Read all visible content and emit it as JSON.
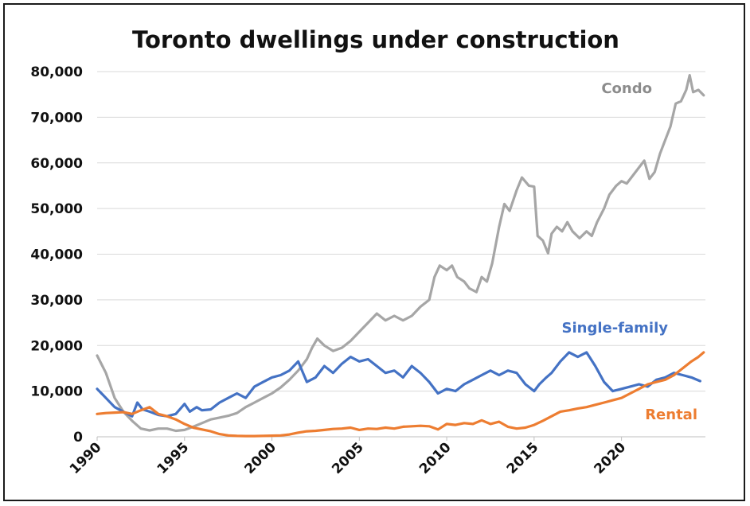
{
  "chart_data": {
    "type": "line",
    "title": "Toronto dwellings under construction",
    "xlim": [
      1990,
      2024.8
    ],
    "ylim": [
      0,
      80000
    ],
    "y_ticks": [
      0,
      10000,
      20000,
      30000,
      40000,
      50000,
      60000,
      70000,
      80000
    ],
    "y_tick_labels": [
      "0",
      "10,000",
      "20,000",
      "30,000",
      "40,000",
      "50,000",
      "60,000",
      "70,000",
      "80,000"
    ],
    "x_ticks": [
      1990,
      1995,
      2000,
      2005,
      2010,
      2015,
      2020
    ],
    "x_tick_labels": [
      "1990",
      "1995",
      "2000",
      "2005",
      "2010",
      "2015",
      "2020"
    ],
    "grid": true,
    "series": [
      {
        "name": "Condo",
        "color": "#a6a6a6",
        "points": [
          [
            1990,
            17800
          ],
          [
            1990.5,
            14000
          ],
          [
            1991,
            8500
          ],
          [
            1991.5,
            5500
          ],
          [
            1992,
            3500
          ],
          [
            1992.5,
            1800
          ],
          [
            1993,
            1400
          ],
          [
            1993.5,
            1800
          ],
          [
            1994,
            1800
          ],
          [
            1994.5,
            1300
          ],
          [
            1995,
            1500
          ],
          [
            1995.5,
            2200
          ],
          [
            1996,
            3000
          ],
          [
            1996.5,
            3800
          ],
          [
            1997,
            4200
          ],
          [
            1997.5,
            4600
          ],
          [
            1998,
            5200
          ],
          [
            1998.5,
            6500
          ],
          [
            1999,
            7500
          ],
          [
            1999.5,
            8500
          ],
          [
            2000,
            9500
          ],
          [
            2000.5,
            10800
          ],
          [
            2001,
            12500
          ],
          [
            2001.5,
            14500
          ],
          [
            2002,
            17000
          ],
          [
            2002.3,
            19500
          ],
          [
            2002.6,
            21500
          ],
          [
            2003,
            20000
          ],
          [
            2003.5,
            18800
          ],
          [
            2004,
            19500
          ],
          [
            2004.5,
            21000
          ],
          [
            2005,
            23000
          ],
          [
            2005.5,
            25000
          ],
          [
            2006,
            27000
          ],
          [
            2006.5,
            25500
          ],
          [
            2007,
            26500
          ],
          [
            2007.5,
            25500
          ],
          [
            2008,
            26500
          ],
          [
            2008.5,
            28500
          ],
          [
            2009,
            30000
          ],
          [
            2009.3,
            35000
          ],
          [
            2009.6,
            37500
          ],
          [
            2010,
            36500
          ],
          [
            2010.3,
            37500
          ],
          [
            2010.6,
            35000
          ],
          [
            2011,
            34000
          ],
          [
            2011.3,
            32500
          ],
          [
            2011.7,
            31700
          ],
          [
            2012,
            35000
          ],
          [
            2012.3,
            34000
          ],
          [
            2012.6,
            38000
          ],
          [
            2013,
            46000
          ],
          [
            2013.3,
            51000
          ],
          [
            2013.6,
            49500
          ],
          [
            2014,
            54000
          ],
          [
            2014.3,
            56800
          ],
          [
            2014.7,
            55000
          ],
          [
            2015,
            54800
          ],
          [
            2015.2,
            44000
          ],
          [
            2015.5,
            43000
          ],
          [
            2015.8,
            40200
          ],
          [
            2016,
            44500
          ],
          [
            2016.3,
            46000
          ],
          [
            2016.6,
            45000
          ],
          [
            2016.9,
            47000
          ],
          [
            2017.2,
            45000
          ],
          [
            2017.6,
            43500
          ],
          [
            2018,
            45000
          ],
          [
            2018.3,
            44000
          ],
          [
            2018.6,
            47000
          ],
          [
            2019,
            50000
          ],
          [
            2019.3,
            53000
          ],
          [
            2019.7,
            55000
          ],
          [
            2020,
            56000
          ],
          [
            2020.3,
            55500
          ],
          [
            2020.6,
            57000
          ],
          [
            2021,
            59000
          ],
          [
            2021.3,
            60500
          ],
          [
            2021.6,
            56500
          ],
          [
            2021.9,
            58000
          ],
          [
            2022.2,
            62000
          ],
          [
            2022.5,
            65000
          ],
          [
            2022.8,
            68000
          ],
          [
            2023.1,
            73000
          ],
          [
            2023.4,
            73500
          ],
          [
            2023.7,
            76000
          ],
          [
            2023.9,
            79200
          ],
          [
            2024.1,
            75500
          ],
          [
            2024.4,
            76000
          ],
          [
            2024.7,
            74800
          ]
        ]
      },
      {
        "name": "Single-family",
        "color": "#4472c4",
        "points": [
          [
            1990,
            10500
          ],
          [
            1990.5,
            8500
          ],
          [
            1991,
            6500
          ],
          [
            1991.5,
            5500
          ],
          [
            1992,
            4500
          ],
          [
            1992.3,
            7500
          ],
          [
            1992.6,
            6000
          ],
          [
            1993,
            5500
          ],
          [
            1993.5,
            4800
          ],
          [
            1994,
            4500
          ],
          [
            1994.5,
            5000
          ],
          [
            1995,
            7200
          ],
          [
            1995.3,
            5500
          ],
          [
            1995.7,
            6500
          ],
          [
            1996,
            5800
          ],
          [
            1996.5,
            6000
          ],
          [
            1997,
            7500
          ],
          [
            1997.5,
            8500
          ],
          [
            1998,
            9500
          ],
          [
            1998.5,
            8500
          ],
          [
            1999,
            11000
          ],
          [
            1999.5,
            12000
          ],
          [
            2000,
            13000
          ],
          [
            2000.5,
            13500
          ],
          [
            2001,
            14500
          ],
          [
            2001.5,
            16500
          ],
          [
            2002,
            12000
          ],
          [
            2002.5,
            13000
          ],
          [
            2003,
            15500
          ],
          [
            2003.5,
            14000
          ],
          [
            2004,
            16000
          ],
          [
            2004.5,
            17500
          ],
          [
            2005,
            16500
          ],
          [
            2005.5,
            17000
          ],
          [
            2006,
            15500
          ],
          [
            2006.5,
            14000
          ],
          [
            2007,
            14500
          ],
          [
            2007.5,
            13000
          ],
          [
            2008,
            15500
          ],
          [
            2008.5,
            14000
          ],
          [
            2009,
            12000
          ],
          [
            2009.5,
            9500
          ],
          [
            2010,
            10500
          ],
          [
            2010.5,
            10000
          ],
          [
            2011,
            11500
          ],
          [
            2011.5,
            12500
          ],
          [
            2012,
            13500
          ],
          [
            2012.5,
            14500
          ],
          [
            2013,
            13500
          ],
          [
            2013.5,
            14500
          ],
          [
            2014,
            14000
          ],
          [
            2014.5,
            11500
          ],
          [
            2015,
            10000
          ],
          [
            2015.3,
            11500
          ],
          [
            2015.7,
            13000
          ],
          [
            2016,
            14000
          ],
          [
            2016.5,
            16500
          ],
          [
            2017,
            18500
          ],
          [
            2017.5,
            17500
          ],
          [
            2018,
            18500
          ],
          [
            2018.5,
            15500
          ],
          [
            2019,
            12000
          ],
          [
            2019.5,
            10000
          ],
          [
            2020,
            10500
          ],
          [
            2020.5,
            11000
          ],
          [
            2021,
            11500
          ],
          [
            2021.5,
            11000
          ],
          [
            2022,
            12500
          ],
          [
            2022.5,
            13000
          ],
          [
            2023,
            14000
          ],
          [
            2023.5,
            13500
          ],
          [
            2024,
            13000
          ],
          [
            2024.5,
            12200
          ]
        ]
      },
      {
        "name": "Rental",
        "color": "#ed7d31",
        "points": [
          [
            1990,
            5000
          ],
          [
            1990.5,
            5200
          ],
          [
            1991,
            5300
          ],
          [
            1991.5,
            5400
          ],
          [
            1992,
            5000
          ],
          [
            1992.5,
            5800
          ],
          [
            1993,
            6500
          ],
          [
            1993.5,
            5000
          ],
          [
            1994,
            4500
          ],
          [
            1994.5,
            3800
          ],
          [
            1995,
            2800
          ],
          [
            1995.5,
            2000
          ],
          [
            1996,
            1600
          ],
          [
            1996.5,
            1200
          ],
          [
            1997,
            600
          ],
          [
            1997.5,
            300
          ],
          [
            1998,
            200
          ],
          [
            1998.5,
            150
          ],
          [
            1999,
            150
          ],
          [
            1999.5,
            200
          ],
          [
            2000,
            250
          ],
          [
            2000.5,
            300
          ],
          [
            2001,
            500
          ],
          [
            2001.5,
            900
          ],
          [
            2002,
            1200
          ],
          [
            2002.5,
            1300
          ],
          [
            2003,
            1500
          ],
          [
            2003.5,
            1700
          ],
          [
            2004,
            1800
          ],
          [
            2004.5,
            2000
          ],
          [
            2005,
            1500
          ],
          [
            2005.5,
            1800
          ],
          [
            2006,
            1700
          ],
          [
            2006.5,
            2000
          ],
          [
            2007,
            1800
          ],
          [
            2007.5,
            2200
          ],
          [
            2008,
            2300
          ],
          [
            2008.5,
            2400
          ],
          [
            2009,
            2300
          ],
          [
            2009.5,
            1600
          ],
          [
            2010,
            2800
          ],
          [
            2010.5,
            2600
          ],
          [
            2011,
            3000
          ],
          [
            2011.5,
            2800
          ],
          [
            2012,
            3600
          ],
          [
            2012.5,
            2800
          ],
          [
            2013,
            3300
          ],
          [
            2013.5,
            2200
          ],
          [
            2014,
            1800
          ],
          [
            2014.5,
            2000
          ],
          [
            2015,
            2600
          ],
          [
            2015.5,
            3500
          ],
          [
            2016,
            4500
          ],
          [
            2016.5,
            5500
          ],
          [
            2017,
            5800
          ],
          [
            2017.5,
            6200
          ],
          [
            2018,
            6500
          ],
          [
            2018.5,
            7000
          ],
          [
            2019,
            7500
          ],
          [
            2019.5,
            8000
          ],
          [
            2020,
            8500
          ],
          [
            2020.5,
            9500
          ],
          [
            2021,
            10500
          ],
          [
            2021.5,
            11500
          ],
          [
            2022,
            12000
          ],
          [
            2022.5,
            12500
          ],
          [
            2023,
            13500
          ],
          [
            2023.5,
            15000
          ],
          [
            2024,
            16500
          ],
          [
            2024.4,
            17500
          ],
          [
            2024.7,
            18500
          ]
        ]
      }
    ],
    "series_labels": [
      "Condo",
      "Single-family",
      "Rental"
    ]
  }
}
